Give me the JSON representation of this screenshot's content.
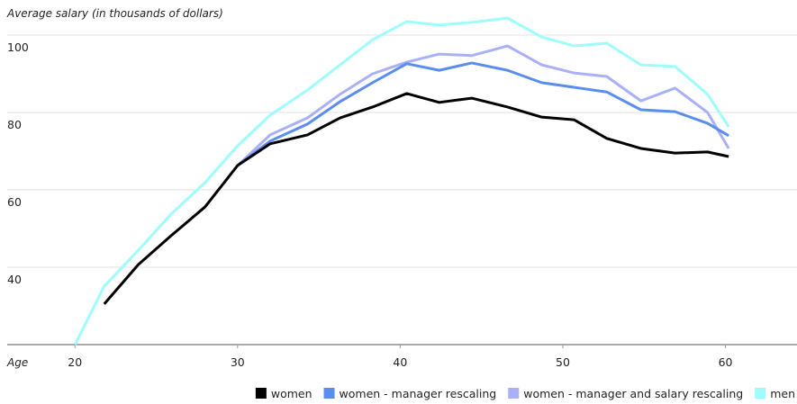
{
  "chart_data": {
    "type": "line",
    "title": "Average salary (in thousands of dollars)",
    "x_label": "Age",
    "x": [
      20,
      21.8,
      23.9,
      25.9,
      28,
      30,
      32,
      34.3,
      36.3,
      38.3,
      40.4,
      42.4,
      44.4,
      46.6,
      48.7,
      50.7,
      52.7,
      54.8,
      56.9,
      58.9,
      60.2
    ],
    "series": [
      {
        "name": "women",
        "color": "#000000",
        "values": [
          null,
          30.5,
          40.7,
          48.1,
          55.6,
          66.3,
          71.9,
          74.2,
          78.6,
          81.4,
          84.9,
          82.6,
          83.7,
          81.4,
          78.8,
          78.1,
          73.3,
          70.7,
          69.5,
          69.8,
          68.6
        ]
      },
      {
        "name": "women - manager rescaling",
        "color": "#5b8def",
        "values": [
          null,
          null,
          null,
          null,
          null,
          66.3,
          72.6,
          77.0,
          82.8,
          87.7,
          92.6,
          90.9,
          92.8,
          90.9,
          87.7,
          86.5,
          85.3,
          80.7,
          80.2,
          77.2,
          74.0
        ]
      },
      {
        "name": "women - manager and salary rescaling",
        "color": "#aab0f5",
        "values": [
          null,
          null,
          null,
          null,
          null,
          66.3,
          74.2,
          78.6,
          84.7,
          90.0,
          93.0,
          95.1,
          94.7,
          97.2,
          92.3,
          90.2,
          89.3,
          83.0,
          86.3,
          80.0,
          70.7
        ]
      },
      {
        "name": "men",
        "color": "#9ffcfc",
        "values": [
          20,
          35.1,
          44.4,
          53.7,
          61.9,
          71.4,
          79.3,
          85.8,
          92.3,
          98.8,
          103.5,
          102.6,
          103.3,
          104.4,
          99.5,
          97.2,
          97.9,
          92.3,
          91.9,
          84.7,
          76.3
        ]
      }
    ],
    "xlim": [
      16,
      64.4
    ],
    "xticks": [
      20,
      30,
      40,
      50,
      60
    ],
    "ylim": [
      20,
      105
    ],
    "yticks": [
      40,
      60,
      80,
      100
    ],
    "grid": true,
    "legend": "bottom-right"
  }
}
